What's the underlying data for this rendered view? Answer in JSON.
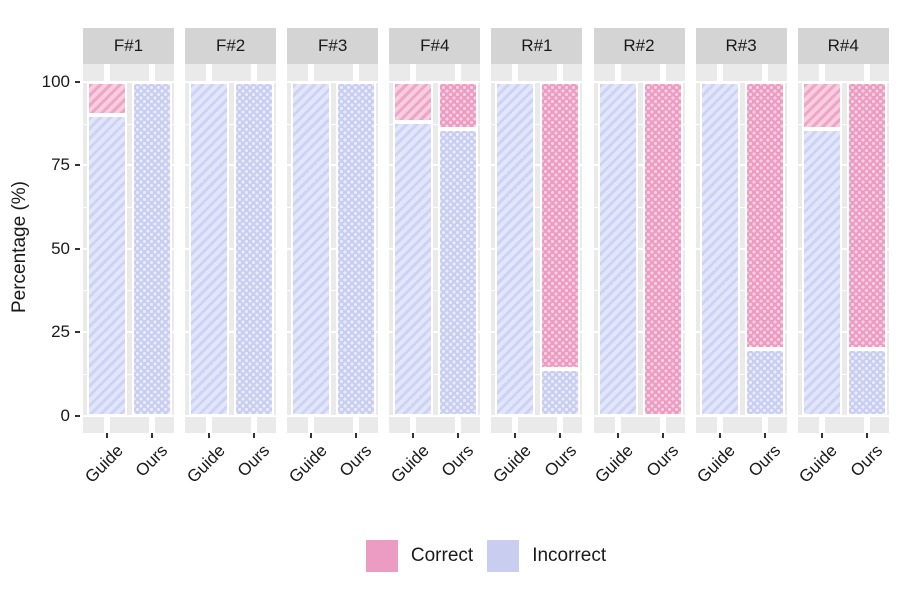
{
  "chart_data": {
    "type": "bar",
    "stacked": true,
    "orientation": "vertical",
    "title": "",
    "ylabel": "Percentage (%)",
    "xlabel": "",
    "ylim": [
      0,
      100
    ],
    "yticks": [
      0,
      25,
      50,
      75,
      100
    ],
    "grid": true,
    "legend_position": "bottom",
    "categories": [
      "Guide",
      "Ours"
    ],
    "patterns": {
      "Guide": "diagonal-stripes",
      "Ours": "dots"
    },
    "legend": [
      {
        "label": "Correct",
        "color": "#ec9cc2"
      },
      {
        "label": "Incorrect",
        "color": "#c9cef1"
      }
    ],
    "facets": [
      {
        "label": "F#1",
        "bars": [
          {
            "category": "Guide",
            "segments": {
              "Correct": 10,
              "Incorrect": 90
            }
          },
          {
            "category": "Ours",
            "segments": {
              "Correct": 0,
              "Incorrect": 100
            }
          }
        ]
      },
      {
        "label": "F#2",
        "bars": [
          {
            "category": "Guide",
            "segments": {
              "Correct": 0,
              "Incorrect": 100
            }
          },
          {
            "category": "Ours",
            "segments": {
              "Correct": 0,
              "Incorrect": 100
            }
          }
        ]
      },
      {
        "label": "F#3",
        "bars": [
          {
            "category": "Guide",
            "segments": {
              "Correct": 0,
              "Incorrect": 100
            }
          },
          {
            "category": "Ours",
            "segments": {
              "Correct": 0,
              "Incorrect": 100
            }
          }
        ]
      },
      {
        "label": "F#4",
        "bars": [
          {
            "category": "Guide",
            "segments": {
              "Correct": 12,
              "Incorrect": 88
            }
          },
          {
            "category": "Ours",
            "segments": {
              "Correct": 14,
              "Incorrect": 86
            }
          }
        ]
      },
      {
        "label": "R#1",
        "bars": [
          {
            "category": "Guide",
            "segments": {
              "Correct": 0,
              "Incorrect": 100
            }
          },
          {
            "category": "Ours",
            "segments": {
              "Correct": 86,
              "Incorrect": 14
            }
          }
        ]
      },
      {
        "label": "R#2",
        "bars": [
          {
            "category": "Guide",
            "segments": {
              "Correct": 0,
              "Incorrect": 100
            }
          },
          {
            "category": "Ours",
            "segments": {
              "Correct": 100,
              "Incorrect": 0
            }
          }
        ]
      },
      {
        "label": "R#3",
        "bars": [
          {
            "category": "Guide",
            "segments": {
              "Correct": 0,
              "Incorrect": 100
            }
          },
          {
            "category": "Ours",
            "segments": {
              "Correct": 80,
              "Incorrect": 20
            }
          }
        ]
      },
      {
        "label": "R#4",
        "bars": [
          {
            "category": "Guide",
            "segments": {
              "Correct": 14,
              "Incorrect": 86
            }
          },
          {
            "category": "Ours",
            "segments": {
              "Correct": 80,
              "Incorrect": 20
            }
          }
        ]
      }
    ],
    "colors": {
      "correct_base": "#ec9cc2",
      "correct_stripe_light": "#f8cddf",
      "incorrect_base": "#c9cef1",
      "incorrect_stripe_light": "#e3e6fa",
      "strip_background": "#d4d4d4",
      "panel_background": "#eaeaea",
      "gridline": "#ffffff",
      "axis_text": "#1a1a1a"
    }
  }
}
